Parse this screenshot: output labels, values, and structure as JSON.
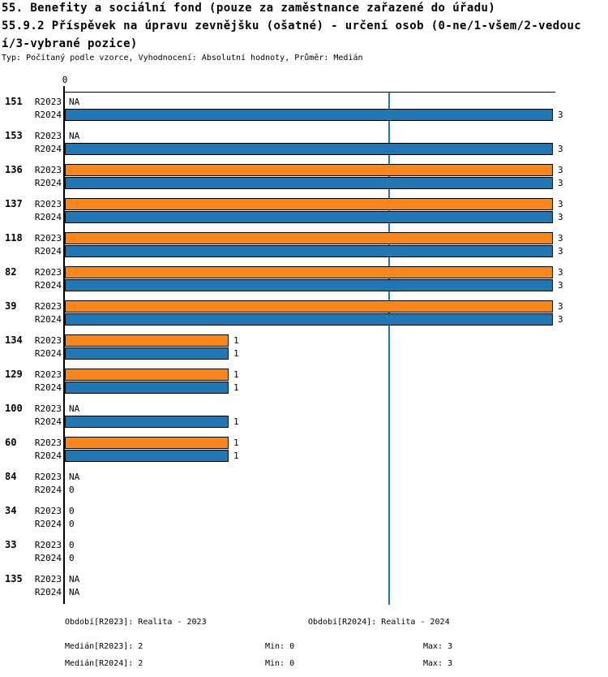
{
  "title_lines": [
    "55. Benefity a sociální fond (pouze za zaměstnance zařazené do úřadu)",
    "55.9.2 Příspěvek na úpravu zevnějšku (ošatné) - určení osob (0-ne/1-všem/2-vedouc",
    "í/3-vybrané pozice)"
  ],
  "subtitle": "Typ: Počítaný podle vzorce, Vyhodnocení: Absolutní hodnoty, Průměr: Medián",
  "chart_data": {
    "type": "bar",
    "orientation": "horizontal",
    "axis": {
      "tick_label": "0",
      "min": 0,
      "max": 3,
      "median_line_value": 2
    },
    "series_labels": [
      "R2023",
      "R2024"
    ],
    "colors": {
      "R2023": "#F9871E",
      "R2024": "#2077B4",
      "median_line": "#2077B4",
      "bar_border": "#000000"
    },
    "groups": [
      {
        "id": "151",
        "R2023": "NA",
        "R2024": 3
      },
      {
        "id": "153",
        "R2023": "NA",
        "R2024": 3
      },
      {
        "id": "136",
        "R2023": 3,
        "R2024": 3
      },
      {
        "id": "137",
        "R2023": 3,
        "R2024": 3
      },
      {
        "id": "118",
        "R2023": 3,
        "R2024": 3
      },
      {
        "id": "82",
        "R2023": 3,
        "R2024": 3
      },
      {
        "id": "39",
        "R2023": 3,
        "R2024": 3
      },
      {
        "id": "134",
        "R2023": 1,
        "R2024": 1
      },
      {
        "id": "129",
        "R2023": 1,
        "R2024": 1
      },
      {
        "id": "100",
        "R2023": "NA",
        "R2024": 1
      },
      {
        "id": "60",
        "R2023": 1,
        "R2024": 1
      },
      {
        "id": "84",
        "R2023": "NA",
        "R2024": 0
      },
      {
        "id": "34",
        "R2023": 0,
        "R2024": 0
      },
      {
        "id": "33",
        "R2023": 0,
        "R2024": 0
      },
      {
        "id": "135",
        "R2023": "NA",
        "R2024": "NA"
      }
    ]
  },
  "footer": {
    "obdobi_2023": "Období[R2023]: Realita - 2023",
    "obdobi_2024": "Období[R2024]: Realita - 2024",
    "median_2023": "Medián[R2023]: 2",
    "median_2024": "Medián[R2024]: 2",
    "min_row1": "Min: 0",
    "max_row1": "Max: 3",
    "min_row2": "Min: 0",
    "max_row2": "Max: 3"
  }
}
